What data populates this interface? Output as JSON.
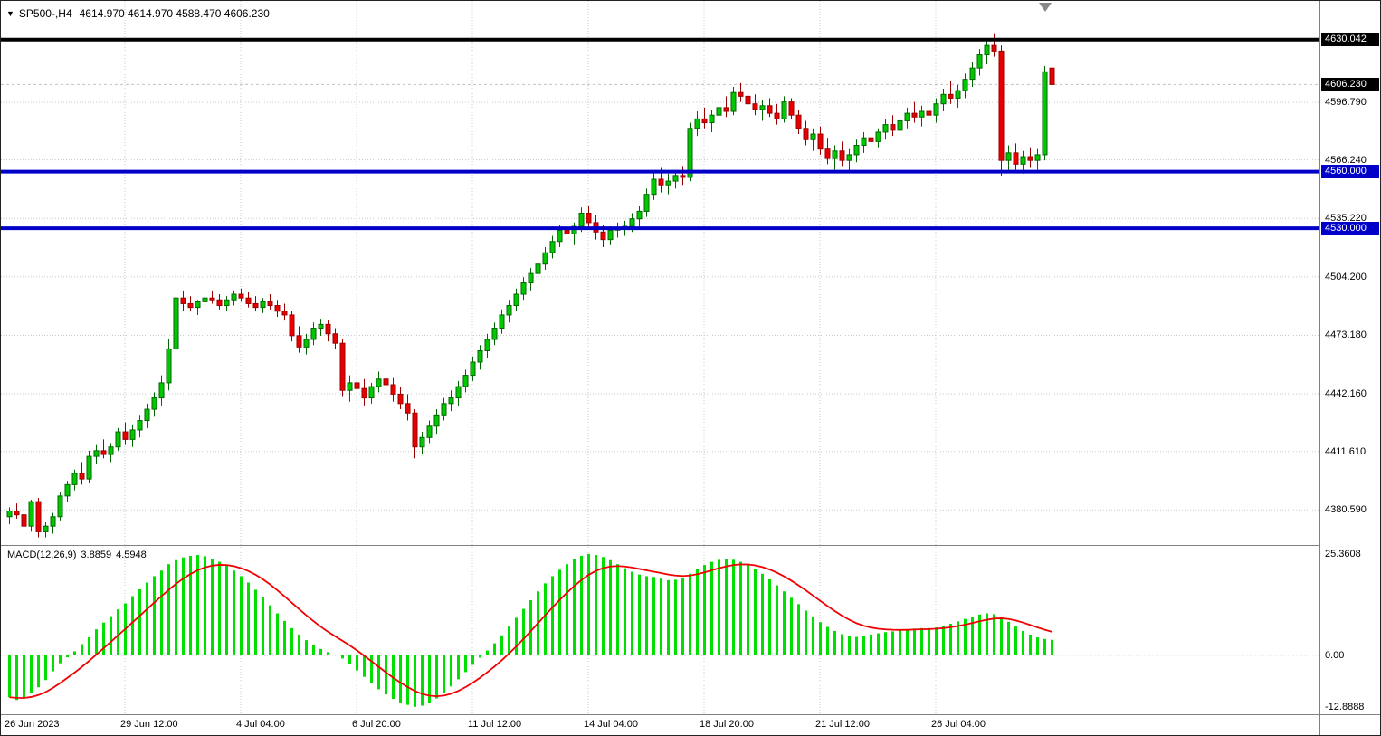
{
  "quote": {
    "symbol_period": "SP500-,H4",
    "ohlc": "4614.970 4614.970 4588.470 4606.230"
  },
  "colors": {
    "grid": "#C8C8C8",
    "candle_up": "#00C800",
    "candle_up_border": "#006600",
    "candle_down": "#E80000",
    "candle_down_border": "#990000",
    "macd_hist": "#00E000",
    "macd_signal": "#F00000",
    "line_blue": "#0000C8",
    "line_black": "#000000",
    "current_price_line": "#C0C0C0"
  },
  "chart_data": {
    "type": "candlestick",
    "title": "SP500-,H4",
    "symbol": "SP500-",
    "timeframe": "H4",
    "price_ylim": [
      4362.0,
      4650.6
    ],
    "macd_ylim": [
      -14.3,
      27.6
    ],
    "grid": true,
    "hlines": [
      {
        "value": 4630.042,
        "color": "#000000",
        "width": 4,
        "object": true,
        "layer": "over"
      },
      {
        "value": 4606.23,
        "color": "#C0C0C0",
        "width": 1,
        "object": false,
        "layer": "under"
      },
      {
        "value": 4560.0,
        "color": "#0000C8",
        "width": 4,
        "object": true,
        "layer": "over"
      },
      {
        "value": 4530.0,
        "color": "#0000C8",
        "width": 4,
        "object": true,
        "layer": "over"
      }
    ],
    "price_axis": [
      {
        "label": "4630.042",
        "value": 4630.042,
        "style": "black"
      },
      {
        "label": "4606.230",
        "value": 4606.23,
        "style": "black"
      },
      {
        "label": "4596.790",
        "value": 4596.79,
        "style": "plain"
      },
      {
        "label": "4566.240",
        "value": 4566.24,
        "style": "plain"
      },
      {
        "label": "4560.000",
        "value": 4560.0,
        "style": "blue"
      },
      {
        "label": "4535.220",
        "value": 4535.22,
        "style": "plain"
      },
      {
        "label": "4530.000",
        "value": 4530.0,
        "style": "blue"
      },
      {
        "label": "4504.200",
        "value": 4504.2,
        "style": "plain"
      },
      {
        "label": "4473.180",
        "value": 4473.18,
        "style": "plain"
      },
      {
        "label": "4442.160",
        "value": 4442.16,
        "style": "plain"
      },
      {
        "label": "4411.610",
        "value": 4411.61,
        "style": "plain"
      },
      {
        "label": "4380.590",
        "value": 4380.59,
        "style": "plain"
      }
    ],
    "time_axis": [
      {
        "label": "26 Jun 2023",
        "bar": 0
      },
      {
        "label": "29 Jun 12:00",
        "bar": 16
      },
      {
        "label": "4 Jul 04:00",
        "bar": 32
      },
      {
        "label": "6 Jul 20:00",
        "bar": 48
      },
      {
        "label": "11 Jul 12:00",
        "bar": 64
      },
      {
        "label": "14 Jul 04:00",
        "bar": 80
      },
      {
        "label": "18 Jul 20:00",
        "bar": 96
      },
      {
        "label": "21 Jul 12:00",
        "bar": 112
      },
      {
        "label": "26 Jul 04:00",
        "bar": 128
      }
    ],
    "candles": [
      [
        4377,
        4382,
        4373,
        4380
      ],
      [
        4380,
        4384,
        4376,
        4378
      ],
      [
        4378,
        4381,
        4370,
        4372
      ],
      [
        4372,
        4386,
        4369,
        4385
      ],
      [
        4385,
        4387,
        4366,
        4369
      ],
      [
        4369,
        4374,
        4366,
        4372
      ],
      [
        4372,
        4379,
        4368,
        4377
      ],
      [
        4377,
        4390,
        4375,
        4388
      ],
      [
        4388,
        4396,
        4385,
        4394
      ],
      [
        4394,
        4402,
        4391,
        4400
      ],
      [
        4400,
        4406,
        4394,
        4397
      ],
      [
        4397,
        4412,
        4395,
        4409
      ],
      [
        4409,
        4415,
        4405,
        4412
      ],
      [
        4412,
        4418,
        4408,
        4410
      ],
      [
        4410,
        4416,
        4406,
        4414
      ],
      [
        4414,
        4424,
        4412,
        4422
      ],
      [
        4422,
        4427,
        4415,
        4418
      ],
      [
        4418,
        4426,
        4414,
        4423
      ],
      [
        4423,
        4431,
        4419,
        4428
      ],
      [
        4428,
        4437,
        4424,
        4434
      ],
      [
        4434,
        4443,
        4430,
        4440
      ],
      [
        4440,
        4452,
        4436,
        4448
      ],
      [
        4448,
        4471,
        4444,
        4466
      ],
      [
        4466,
        4500,
        4462,
        4493
      ],
      [
        4493,
        4497,
        4486,
        4490
      ],
      [
        4490,
        4494,
        4486,
        4488
      ],
      [
        4488,
        4492,
        4484,
        4491
      ],
      [
        4491,
        4496,
        4488,
        4493
      ],
      [
        4493,
        4497,
        4490,
        4492
      ],
      [
        4492,
        4495,
        4487,
        4489
      ],
      [
        4489,
        4494,
        4486,
        4492
      ],
      [
        4492,
        4497,
        4489,
        4495
      ],
      [
        4495,
        4498,
        4491,
        4493
      ],
      [
        4493,
        4496,
        4488,
        4490
      ],
      [
        4490,
        4494,
        4486,
        4488
      ],
      [
        4488,
        4493,
        4485,
        4491
      ],
      [
        4491,
        4495,
        4487,
        4489
      ],
      [
        4489,
        4492,
        4483,
        4486
      ],
      [
        4486,
        4490,
        4481,
        4484
      ],
      [
        4484,
        4486,
        4470,
        4473
      ],
      [
        4473,
        4478,
        4464,
        4467
      ],
      [
        4467,
        4474,
        4463,
        4471
      ],
      [
        4471,
        4480,
        4468,
        4477
      ],
      [
        4477,
        4482,
        4473,
        4479
      ],
      [
        4479,
        4481,
        4470,
        4474
      ],
      [
        4474,
        4477,
        4466,
        4469
      ],
      [
        4469,
        4471,
        4441,
        4444
      ],
      [
        4444,
        4452,
        4438,
        4448
      ],
      [
        4448,
        4453,
        4442,
        4445
      ],
      [
        4445,
        4450,
        4436,
        4440
      ],
      [
        4440,
        4448,
        4437,
        4446
      ],
      [
        4446,
        4454,
        4443,
        4450
      ],
      [
        4450,
        4455,
        4444,
        4447
      ],
      [
        4447,
        4451,
        4438,
        4442
      ],
      [
        4442,
        4446,
        4434,
        4437
      ],
      [
        4437,
        4442,
        4428,
        4432
      ],
      [
        4432,
        4434,
        4408,
        4414
      ],
      [
        4414,
        4422,
        4410,
        4419
      ],
      [
        4419,
        4428,
        4416,
        4425
      ],
      [
        4425,
        4434,
        4421,
        4431
      ],
      [
        4431,
        4440,
        4428,
        4437
      ],
      [
        4437,
        4444,
        4433,
        4440
      ],
      [
        4440,
        4449,
        4436,
        4446
      ],
      [
        4446,
        4455,
        4443,
        4452
      ],
      [
        4452,
        4462,
        4449,
        4459
      ],
      [
        4459,
        4468,
        4455,
        4465
      ],
      [
        4465,
        4474,
        4461,
        4471
      ],
      [
        4471,
        4480,
        4468,
        4477
      ],
      [
        4477,
        4487,
        4474,
        4484
      ],
      [
        4484,
        4492,
        4480,
        4489
      ],
      [
        4489,
        4498,
        4486,
        4495
      ],
      [
        4495,
        4504,
        4492,
        4501
      ],
      [
        4501,
        4509,
        4497,
        4506
      ],
      [
        4506,
        4514,
        4503,
        4511
      ],
      [
        4511,
        4520,
        4508,
        4517
      ],
      [
        4517,
        4526,
        4514,
        4523
      ],
      [
        4523,
        4532,
        4520,
        4529
      ],
      [
        4529,
        4536,
        4524,
        4527
      ],
      [
        4527,
        4533,
        4521,
        4531
      ],
      [
        4531,
        4541,
        4528,
        4538
      ],
      [
        4538,
        4542,
        4530,
        4533
      ],
      [
        4533,
        4537,
        4524,
        4528
      ],
      [
        4528,
        4532,
        4520,
        4524
      ],
      [
        4524,
        4531,
        4521,
        4529
      ],
      [
        4529,
        4533,
        4525,
        4530
      ],
      [
        4530,
        4534,
        4526,
        4531
      ],
      [
        4531,
        4538,
        4528,
        4535
      ],
      [
        4535,
        4542,
        4531,
        4539
      ],
      [
        4539,
        4551,
        4536,
        4548
      ],
      [
        4548,
        4560,
        4545,
        4556
      ],
      [
        4556,
        4562,
        4549,
        4553
      ],
      [
        4553,
        4559,
        4548,
        4555
      ],
      [
        4555,
        4561,
        4551,
        4558
      ],
      [
        4558,
        4563,
        4553,
        4557
      ],
      [
        4557,
        4586,
        4555,
        4583
      ],
      [
        4583,
        4592,
        4579,
        4588
      ],
      [
        4588,
        4594,
        4583,
        4586
      ],
      [
        4586,
        4593,
        4581,
        4590
      ],
      [
        4590,
        4597,
        4586,
        4594
      ],
      [
        4594,
        4600,
        4589,
        4592
      ],
      [
        4592,
        4605,
        4590,
        4602
      ],
      [
        4602,
        4607,
        4597,
        4600
      ],
      [
        4600,
        4604,
        4593,
        4596
      ],
      [
        4596,
        4601,
        4590,
        4593
      ],
      [
        4593,
        4598,
        4587,
        4595
      ],
      [
        4595,
        4599,
        4589,
        4591
      ],
      [
        4591,
        4596,
        4585,
        4588
      ],
      [
        4588,
        4600,
        4586,
        4597
      ],
      [
        4597,
        4599,
        4588,
        4590
      ],
      [
        4590,
        4593,
        4580,
        4583
      ],
      [
        4583,
        4587,
        4574,
        4577
      ],
      [
        4577,
        4583,
        4571,
        4580
      ],
      [
        4580,
        4584,
        4569,
        4572
      ],
      [
        4572,
        4578,
        4564,
        4567
      ],
      [
        4567,
        4574,
        4561,
        4571
      ],
      [
        4571,
        4576,
        4563,
        4566
      ],
      [
        4566,
        4572,
        4560,
        4569
      ],
      [
        4569,
        4577,
        4565,
        4574
      ],
      [
        4574,
        4581,
        4570,
        4578
      ],
      [
        4578,
        4584,
        4572,
        4576
      ],
      [
        4576,
        4583,
        4573,
        4581
      ],
      [
        4581,
        4588,
        4577,
        4585
      ],
      [
        4585,
        4590,
        4579,
        4582
      ],
      [
        4582,
        4589,
        4578,
        4587
      ],
      [
        4587,
        4594,
        4583,
        4591
      ],
      [
        4591,
        4597,
        4586,
        4589
      ],
      [
        4589,
        4595,
        4584,
        4592
      ],
      [
        4592,
        4598,
        4587,
        4590
      ],
      [
        4590,
        4599,
        4586,
        4596
      ],
      [
        4596,
        4604,
        4592,
        4601
      ],
      [
        4601,
        4608,
        4596,
        4599
      ],
      [
        4599,
        4606,
        4594,
        4603
      ],
      [
        4603,
        4612,
        4599,
        4609
      ],
      [
        4609,
        4618,
        4605,
        4615
      ],
      [
        4615,
        4625,
        4611,
        4622
      ],
      [
        4622,
        4630,
        4617,
        4627
      ],
      [
        4627,
        4633,
        4621,
        4624
      ],
      [
        4624,
        4627,
        4558,
        4566
      ],
      [
        4566,
        4574,
        4560,
        4570
      ],
      [
        4570,
        4575,
        4561,
        4564
      ],
      [
        4564,
        4571,
        4559,
        4568
      ],
      [
        4568,
        4573,
        4562,
        4566
      ],
      [
        4566,
        4572,
        4561,
        4569
      ],
      [
        4569,
        4616,
        4566,
        4613
      ],
      [
        4614.97,
        4614.97,
        4588.47,
        4606.23
      ]
    ],
    "macd": {
      "label": "MACD(12,26,9)",
      "macd_value": "3.8859",
      "signal_value": "4.5948",
      "axis": [
        {
          "label": "25.3608",
          "value": 25.3608
        },
        {
          "label": "0.00",
          "value": 0
        },
        {
          "label": "-12.8888",
          "value": -12.8888
        }
      ],
      "hist": [
        -10.5,
        -11.2,
        -10.8,
        -9.5,
        -8.0,
        -6.2,
        -4.0,
        -2.0,
        -0.5,
        1.0,
        2.8,
        4.5,
        6.5,
        8.2,
        9.8,
        11.5,
        13.0,
        14.8,
        16.5,
        18.2,
        19.8,
        21.2,
        22.8,
        23.8,
        24.5,
        24.9,
        25.1,
        24.8,
        24.2,
        23.4,
        22.4,
        21.2,
        19.8,
        18.2,
        16.4,
        14.5,
        12.5,
        10.5,
        8.6,
        6.8,
        5.2,
        3.8,
        2.6,
        1.6,
        0.8,
        0.2,
        -0.8,
        -2.2,
        -3.8,
        -5.4,
        -7.0,
        -8.5,
        -9.8,
        -10.9,
        -11.8,
        -12.4,
        -12.9,
        -12.6,
        -11.9,
        -10.8,
        -9.4,
        -7.8,
        -6.0,
        -4.2,
        -2.4,
        -0.6,
        1.2,
        3.0,
        5.0,
        7.2,
        9.4,
        11.6,
        13.8,
        16.0,
        18.0,
        19.8,
        21.4,
        22.8,
        24.0,
        24.9,
        25.36,
        25.1,
        24.6,
        23.8,
        22.8,
        21.8,
        20.9,
        20.2,
        19.8,
        19.6,
        19.2,
        18.8,
        18.9,
        19.4,
        20.4,
        21.6,
        22.6,
        23.4,
        23.9,
        24.1,
        23.9,
        23.4,
        22.6,
        21.6,
        20.4,
        19.0,
        17.5,
        16.0,
        14.4,
        12.8,
        11.2,
        9.7,
        8.3,
        7.1,
        6.1,
        5.3,
        4.8,
        4.6,
        4.8,
        5.2,
        5.5,
        5.8,
        6.0,
        6.2,
        6.5,
        6.7,
        6.8,
        6.8,
        7.0,
        7.4,
        7.9,
        8.5,
        9.1,
        9.7,
        10.2,
        10.5,
        10.3,
        9.6,
        8.4,
        7.2,
        6.1,
        5.2,
        4.5,
        4.1,
        3.8859
      ]
    }
  }
}
